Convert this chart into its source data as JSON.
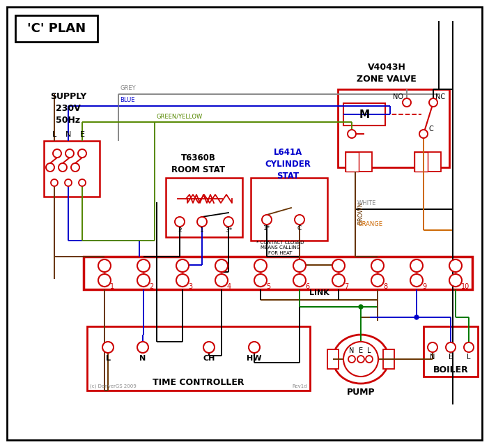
{
  "title": "'C' PLAN",
  "bg_color": "#ffffff",
  "red": "#cc0000",
  "wire_grey": "#888888",
  "wire_blue": "#0000cc",
  "wire_green": "#007700",
  "wire_brown": "#663300",
  "wire_black": "#000000",
  "wire_orange": "#cc6600",
  "wire_gy": "#558800",
  "zone_valve_label": "V4043H\nZONE VALVE",
  "supply_label": "SUPPLY\n230V\n50Hz",
  "room_stat_label": "T6360B\nROOM STAT",
  "cyl_stat_label": "L641A\nCYLINDER\nSTAT",
  "tc_label": "TIME CONTROLLER",
  "pump_label": "PUMP",
  "boiler_label": "BOILER",
  "link_label": "LINK",
  "note_text": "* CONTACT CLOSED\nMEANS CALLING\nFOR HEAT",
  "copyright": "(c) DenverGS 2009",
  "rev": "Rev1d"
}
